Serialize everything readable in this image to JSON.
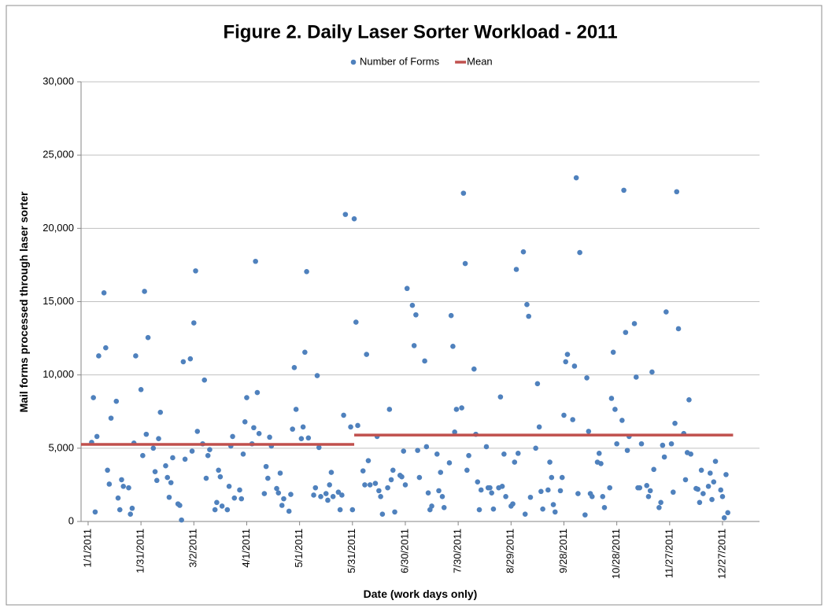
{
  "chart_data": {
    "type": "scatter",
    "title": "Figure 2.  Daily Laser Sorter Workload - 2011",
    "x_label": "Date (work days only)",
    "y_label": "Mail forms processed through laser sorter",
    "xlim": [
      "12/28/2010",
      "1/17/2012"
    ],
    "xticks": [
      "1/1/2011",
      "1/31/2011",
      "3/2/2011",
      "4/1/2011",
      "5/1/2011",
      "5/31/2011",
      "6/30/2011",
      "7/30/2011",
      "8/29/2011",
      "9/28/2011",
      "10/28/2011",
      "11/27/2011",
      "12/27/2011"
    ],
    "ylim": [
      0,
      30000
    ],
    "yticks": [
      0,
      {
        "value": 5000,
        "label": "5,000"
      },
      {
        "value": 10000,
        "label": "10,000"
      },
      {
        "value": 15000,
        "label": "15,000"
      },
      {
        "value": 20000,
        "label": "20,000"
      },
      {
        "value": 25000,
        "label": "25,000"
      },
      {
        "value": 30000,
        "label": "30,000"
      }
    ],
    "grid": true,
    "legend": "top",
    "series": [
      {
        "name": "Number of Forms",
        "type": "scatter",
        "color": "#4f81bd",
        "x": [
          "1/3/2011",
          "1/4/2011",
          "1/5/2011",
          "1/6/2011",
          "1/7/2011",
          "1/10/2011",
          "1/11/2011",
          "1/12/2011",
          "1/13/2011",
          "1/14/2011",
          "1/17/2011",
          "1/18/2011",
          "1/19/2011",
          "1/20/2011",
          "1/21/2011",
          "1/24/2011",
          "1/25/2011",
          "1/26/2011",
          "1/27/2011",
          "1/28/2011",
          "1/31/2011",
          "2/1/2011",
          "2/2/2011",
          "2/3/2011",
          "2/4/2011",
          "2/7/2011",
          "2/8/2011",
          "2/9/2011",
          "2/10/2011",
          "2/11/2011",
          "2/14/2011",
          "2/15/2011",
          "2/16/2011",
          "2/17/2011",
          "2/18/2011",
          "2/21/2011",
          "2/22/2011",
          "2/23/2011",
          "2/24/2011",
          "2/25/2011",
          "2/28/2011",
          "3/1/2011",
          "3/2/2011",
          "3/3/2011",
          "3/4/2011",
          "3/7/2011",
          "3/8/2011",
          "3/9/2011",
          "3/10/2011",
          "3/11/2011",
          "3/14/2011",
          "3/15/2011",
          "3/16/2011",
          "3/17/2011",
          "3/18/2011",
          "3/21/2011",
          "3/22/2011",
          "3/23/2011",
          "3/24/2011",
          "3/25/2011",
          "3/28/2011",
          "3/29/2011",
          "3/30/2011",
          "3/31/2011",
          "4/1/2011",
          "4/4/2011",
          "4/5/2011",
          "4/6/2011",
          "4/7/2011",
          "4/8/2011",
          "4/11/2011",
          "4/12/2011",
          "4/13/2011",
          "4/14/2011",
          "4/15/2011",
          "4/18/2011",
          "4/19/2011",
          "4/20/2011",
          "4/21/2011",
          "4/22/2011",
          "4/25/2011",
          "4/26/2011",
          "4/27/2011",
          "4/28/2011",
          "4/29/2011",
          "5/2/2011",
          "5/3/2011",
          "5/4/2011",
          "5/5/2011",
          "5/6/2011",
          "5/9/2011",
          "5/10/2011",
          "5/11/2011",
          "5/12/2011",
          "5/13/2011",
          "5/16/2011",
          "5/17/2011",
          "5/18/2011",
          "5/19/2011",
          "5/20/2011",
          "5/23/2011",
          "5/24/2011",
          "5/25/2011",
          "5/26/2011",
          "5/27/2011",
          "5/30/2011",
          "5/31/2011",
          "6/1/2011",
          "6/2/2011",
          "6/3/2011",
          "6/6/2011",
          "6/7/2011",
          "6/8/2011",
          "6/9/2011",
          "6/10/2011",
          "6/13/2011",
          "6/14/2011",
          "6/15/2011",
          "6/16/2011",
          "6/17/2011",
          "6/20/2011",
          "6/21/2011",
          "6/22/2011",
          "6/23/2011",
          "6/24/2011",
          "6/27/2011",
          "6/28/2011",
          "6/29/2011",
          "6/30/2011",
          "7/1/2011",
          "7/4/2011",
          "7/5/2011",
          "7/6/2011",
          "7/7/2011",
          "7/8/2011",
          "7/11/2011",
          "7/12/2011",
          "7/13/2011",
          "7/14/2011",
          "7/15/2011",
          "7/18/2011",
          "7/19/2011",
          "7/20/2011",
          "7/21/2011",
          "7/22/2011",
          "7/25/2011",
          "7/26/2011",
          "7/27/2011",
          "7/28/2011",
          "7/29/2011",
          "8/1/2011",
          "8/2/2011",
          "8/3/2011",
          "8/4/2011",
          "8/5/2011",
          "8/8/2011",
          "8/9/2011",
          "8/10/2011",
          "8/11/2011",
          "8/12/2011",
          "8/15/2011",
          "8/16/2011",
          "8/17/2011",
          "8/18/2011",
          "8/19/2011",
          "8/22/2011",
          "8/23/2011",
          "8/24/2011",
          "8/25/2011",
          "8/26/2011",
          "8/29/2011",
          "8/30/2011",
          "8/31/2011",
          "9/1/2011",
          "9/2/2011",
          "9/5/2011",
          "9/6/2011",
          "9/7/2011",
          "9/8/2011",
          "9/9/2011",
          "9/12/2011",
          "9/13/2011",
          "9/14/2011",
          "9/15/2011",
          "9/16/2011",
          "9/19/2011",
          "9/20/2011",
          "9/21/2011",
          "9/22/2011",
          "9/23/2011",
          "9/26/2011",
          "9/27/2011",
          "9/28/2011",
          "9/29/2011",
          "9/30/2011",
          "10/3/2011",
          "10/4/2011",
          "10/5/2011",
          "10/6/2011",
          "10/7/2011",
          "10/10/2011",
          "10/11/2011",
          "10/12/2011",
          "10/13/2011",
          "10/14/2011",
          "10/17/2011",
          "10/18/2011",
          "10/19/2011",
          "10/20/2011",
          "10/21/2011",
          "10/24/2011",
          "10/25/2011",
          "10/26/2011",
          "10/27/2011",
          "10/28/2011",
          "10/31/2011",
          "11/1/2011",
          "11/2/2011",
          "11/3/2011",
          "11/4/2011",
          "11/7/2011",
          "11/8/2011",
          "11/9/2011",
          "11/10/2011",
          "11/11/2011",
          "11/14/2011",
          "11/15/2011",
          "11/16/2011",
          "11/17/2011",
          "11/18/2011",
          "11/21/2011",
          "11/22/2011",
          "11/23/2011",
          "11/24/2011",
          "11/25/2011",
          "11/28/2011",
          "11/29/2011",
          "11/30/2011",
          "12/1/2011",
          "12/2/2011",
          "12/5/2011",
          "12/6/2011",
          "12/7/2011",
          "12/8/2011",
          "12/9/2011",
          "12/12/2011",
          "12/13/2011",
          "12/14/2011",
          "12/15/2011",
          "12/16/2011",
          "12/19/2011",
          "12/20/2011",
          "12/21/2011",
          "12/22/2011",
          "12/23/2011",
          "12/26/2011",
          "12/27/2011",
          "12/28/2011",
          "12/29/2011",
          "12/30/2011"
        ],
        "values": [
          5400,
          8450,
          650,
          5800,
          11300,
          15600,
          11850,
          3500,
          2550,
          7050,
          8200,
          1600,
          800,
          2850,
          2400,
          2300,
          500,
          900,
          5350,
          11300,
          9000,
          4500,
          15700,
          5950,
          12550,
          5000,
          3400,
          2800,
          5650,
          7450,
          3800,
          3000,
          1650,
          2650,
          4350,
          1200,
          1100,
          100,
          10900,
          4250,
          11100,
          4800,
          13550,
          17100,
          6150,
          5300,
          9650,
          2950,
          4500,
          4900,
          800,
          1300,
          3500,
          3050,
          1050,
          800,
          2400,
          5150,
          5800,
          1600,
          2150,
          1550,
          4600,
          6800,
          8450,
          5300,
          6400,
          17750,
          8800,
          6000,
          1900,
          3750,
          2950,
          5750,
          5150,
          2250,
          1950,
          3300,
          1100,
          1550,
          700,
          1850,
          6300,
          10500,
          7650,
          5650,
          6450,
          11550,
          17050,
          5700,
          1800,
          2300,
          9950,
          5050,
          1700,
          1900,
          1450,
          2500,
          3350,
          1700,
          2000,
          800,
          1800,
          7250,
          20950,
          6450,
          800,
          20650,
          13600,
          6550,
          3450,
          2500,
          11400,
          4150,
          2500,
          2600,
          5800,
          2100,
          1700,
          500,
          2300,
          7650,
          2850,
          3500,
          650,
          3150,
          3050,
          4800,
          2500,
          15900,
          14750,
          12000,
          14100,
          4850,
          3000,
          10950,
          5100,
          1950,
          800,
          1050,
          4600,
          2100,
          3350,
          1700,
          950,
          4000,
          14050,
          11950,
          6100,
          7650,
          7750,
          22400,
          17600,
          3500,
          4500,
          10400,
          5950,
          2700,
          800,
          2150,
          5100,
          2300,
          2300,
          1950,
          850,
          2300,
          8500,
          2400,
          4600,
          1700,
          1050,
          1200,
          4050,
          17200,
          4650,
          18400,
          500,
          14800,
          14000,
          1650,
          5000,
          9400,
          6450,
          2050,
          850,
          2150,
          4050,
          3000,
          1150,
          650,
          2100,
          3000,
          7250,
          10900,
          11400,
          6950,
          10600,
          23450,
          1900,
          18350,
          450,
          9800,
          6150,
          1900,
          1700,
          4050,
          4650,
          3950,
          1700,
          950,
          2300,
          8400,
          11550,
          7650,
          5300,
          6900,
          22600,
          12900,
          4850,
          5800,
          13500,
          9850,
          2300,
          2300,
          5300,
          2450,
          1700,
          2100,
          10200,
          3550,
          950,
          1300,
          5200,
          4400,
          14300,
          5300,
          2000,
          6700,
          22500,
          13150,
          6000,
          2850,
          4700,
          8300,
          4600,
          2250,
          2200,
          1300,
          3500,
          1900,
          2400,
          3300,
          1500,
          2700,
          4100,
          2150,
          1700,
          250,
          3200,
          600
        ]
      },
      {
        "name": "Mean",
        "type": "line",
        "color": "#c0504d",
        "x": [
          "12/28/2010",
          "6/1/2011",
          null,
          "6/1/2011",
          "1/2/2012"
        ],
        "values": [
          5260,
          5260,
          null,
          5900,
          5900
        ]
      }
    ]
  }
}
